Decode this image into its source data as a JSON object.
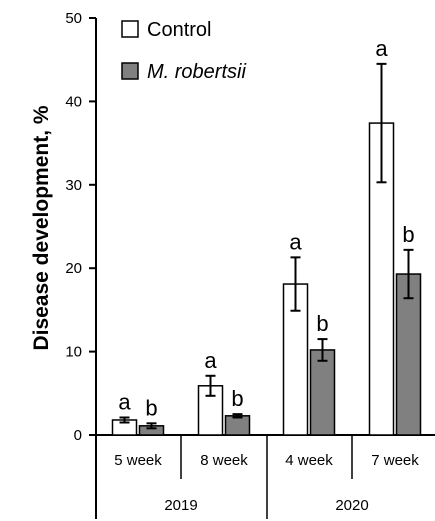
{
  "chart_data": {
    "type": "bar",
    "ylabel": "Disease development, %",
    "xlabel": "",
    "ylim": [
      0,
      50
    ],
    "yticks": [
      0,
      10,
      20,
      30,
      40,
      50
    ],
    "categories": [
      "5 week",
      "8 week",
      "4 week",
      "7 week"
    ],
    "groups": [
      {
        "label": "2019",
        "categories": [
          "5 week",
          "8 week"
        ]
      },
      {
        "label": "2020",
        "categories": [
          "4 week",
          "7 week"
        ]
      }
    ],
    "series": [
      {
        "name": "Control",
        "color": "#ffffff",
        "values": [
          1.8,
          5.9,
          18.1,
          37.4
        ],
        "errors": [
          0.3,
          1.2,
          3.2,
          7.1
        ],
        "letters": [
          "a",
          "a",
          "a",
          "a"
        ]
      },
      {
        "name": "M. robertsii",
        "color": "#808080",
        "values": [
          1.1,
          2.3,
          10.2,
          19.3
        ],
        "errors": [
          0.3,
          0.2,
          1.3,
          2.9
        ],
        "letters": [
          "b",
          "b",
          "b",
          "b"
        ]
      }
    ],
    "legend": {
      "position": "top-left"
    },
    "grid": false
  }
}
